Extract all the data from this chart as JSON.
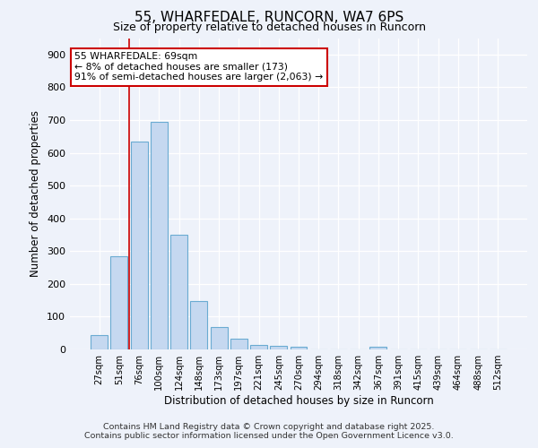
{
  "title": "55, WHARFEDALE, RUNCORN, WA7 6PS",
  "subtitle": "Size of property relative to detached houses in Runcorn",
  "xlabel": "Distribution of detached houses by size in Runcorn",
  "ylabel": "Number of detached properties",
  "categories": [
    "27sqm",
    "51sqm",
    "76sqm",
    "100sqm",
    "124sqm",
    "148sqm",
    "173sqm",
    "197sqm",
    "221sqm",
    "245sqm",
    "270sqm",
    "294sqm",
    "318sqm",
    "342sqm",
    "367sqm",
    "391sqm",
    "415sqm",
    "439sqm",
    "464sqm",
    "488sqm",
    "512sqm"
  ],
  "values": [
    45,
    283,
    635,
    695,
    350,
    148,
    67,
    32,
    15,
    10,
    8,
    0,
    0,
    0,
    8,
    0,
    0,
    0,
    0,
    0,
    0
  ],
  "bar_color": "#c5d8f0",
  "bar_edge_color": "#6aabd2",
  "annotation_text_line1": "55 WHARFEDALE: 69sqm",
  "annotation_text_line2": "← 8% of detached houses are smaller (173)",
  "annotation_text_line3": "91% of semi-detached houses are larger (2,063) →",
  "red_line_color": "#cc0000",
  "red_line_x": 1.5,
  "ylim": [
    0,
    950
  ],
  "yticks": [
    0,
    100,
    200,
    300,
    400,
    500,
    600,
    700,
    800,
    900
  ],
  "bg_color": "#eef2fa",
  "grid_color": "#ffffff",
  "footer_line1": "Contains HM Land Registry data © Crown copyright and database right 2025.",
  "footer_line2": "Contains public sector information licensed under the Open Government Licence v3.0."
}
